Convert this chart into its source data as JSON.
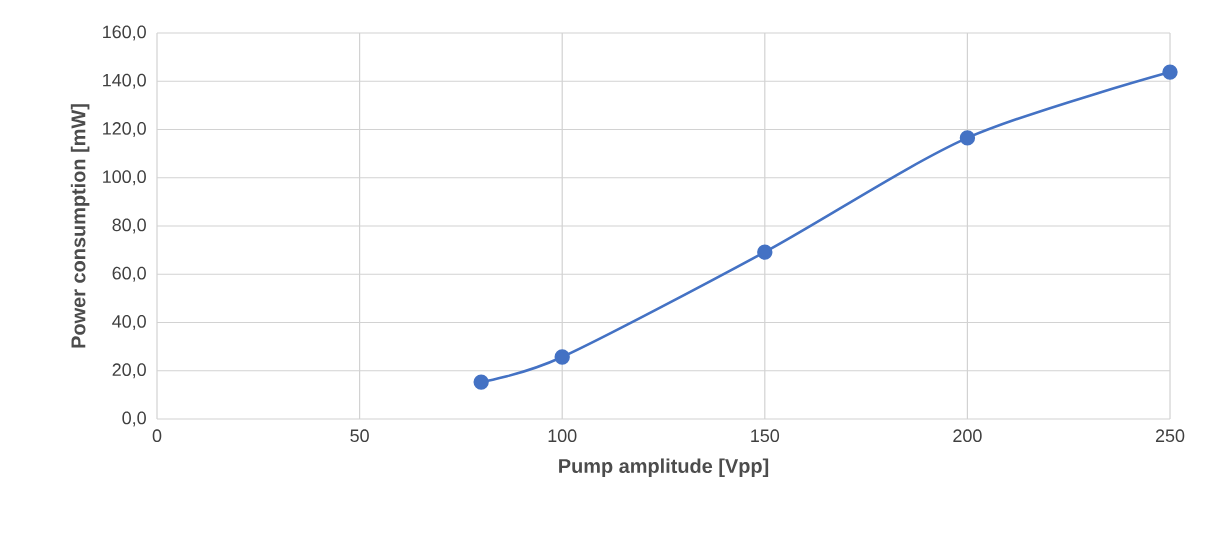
{
  "chart_data": {
    "type": "line",
    "xlabel": "Pump amplitude [Vpp]",
    "ylabel": "Power consumption [mW]",
    "x": [
      80,
      100,
      150,
      200,
      250
    ],
    "series": [
      {
        "color": "#4472c4",
        "values": [
          15.3,
          25.7,
          69.2,
          116.5,
          143.8
        ]
      }
    ],
    "xlim": [
      0,
      250
    ],
    "xticks": [
      0,
      50,
      100,
      150,
      200,
      250
    ],
    "ylim": [
      0,
      160
    ],
    "yticks": [
      {
        "value": 0,
        "label": "0,0"
      },
      {
        "value": 20,
        "label": "20,0"
      },
      {
        "value": 40,
        "label": "40,0"
      },
      {
        "value": 60,
        "label": "60,0"
      },
      {
        "value": 80,
        "label": "80,0"
      },
      {
        "value": 100,
        "label": "100,0"
      },
      {
        "value": 120,
        "label": "120,0"
      },
      {
        "value": 140,
        "label": "140,0"
      },
      {
        "value": 160,
        "label": "160,0"
      }
    ],
    "grid": true,
    "marker": "circle",
    "line_style": "solid"
  }
}
